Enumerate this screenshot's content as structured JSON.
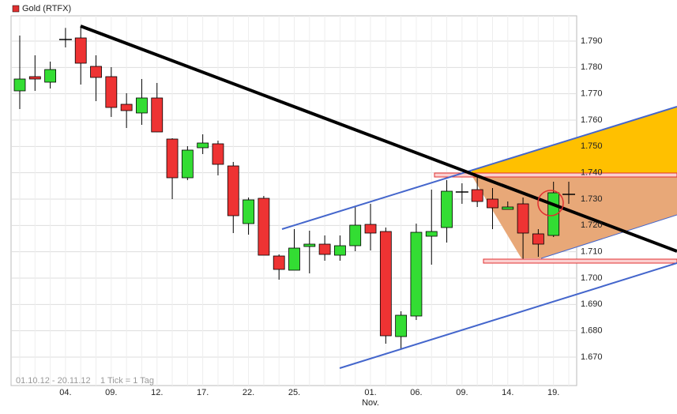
{
  "chart_data": {
    "type": "candlestick",
    "categories": [
      null,
      null,
      null,
      "04.",
      null,
      null,
      "09.",
      null,
      null,
      "12.",
      null,
      null,
      "17.",
      null,
      null,
      "22.",
      null,
      null,
      "25.",
      null,
      null,
      null,
      null,
      "01.",
      null,
      null,
      "06.",
      null,
      null,
      "09.",
      null,
      null,
      "14.",
      null,
      null,
      "19.",
      null
    ],
    "month_label": {
      "index": 23,
      "label": "Nov."
    },
    "series": [
      {
        "name": "Gold (RTFX)",
        "color": "#e03030",
        "up_color": "#33dd33",
        "down_color": "#ee3333",
        "open": [
          1771.1,
          1776.5,
          1774.4,
          1790.6,
          1791.2,
          1780.4,
          1776.5,
          1766.0,
          1762.7,
          1768.4,
          1752.8,
          1738.1,
          1749.5,
          1751.0,
          1742.6,
          1720.7,
          1730.3,
          1708.4,
          1703.0,
          1712.0,
          1712.9,
          1708.7,
          1712.3,
          1720.4,
          1717.7,
          1677.8,
          1685.6,
          1715.9,
          1719.2,
          1732.7,
          1733.6,
          1730.0,
          1726.1,
          1728.2,
          1716.8,
          1716.2,
          1731.8
        ],
        "high": [
          1792.1,
          1784.6,
          1782.2,
          1795.0,
          1795.7,
          1784.6,
          1780.1,
          1770.2,
          1775.6,
          1774.1,
          1753.1,
          1750.1,
          1754.6,
          1752.2,
          1744.1,
          1730.6,
          1731.2,
          1709.0,
          1718.6,
          1718.0,
          1716.2,
          1716.2,
          1727.0,
          1728.2,
          1719.2,
          1687.4,
          1720.7,
          1733.6,
          1737.2,
          1736.0,
          1739.0,
          1734.2,
          1729.1,
          1730.6,
          1718.6,
          1736.6,
          1736.6
        ],
        "low": [
          1764.2,
          1771.1,
          1772.0,
          1787.6,
          1773.5,
          1767.2,
          1761.2,
          1757.0,
          1758.2,
          1755.5,
          1730.0,
          1737.2,
          1747.1,
          1739.0,
          1717.1,
          1716.5,
          1708.7,
          1699.4,
          1703.0,
          1701.8,
          1706.6,
          1706.6,
          1710.2,
          1710.5,
          1675.1,
          1673.0,
          1684.1,
          1705.1,
          1713.5,
          1728.2,
          1727.0,
          1718.6,
          1726.1,
          1706.6,
          1708.1,
          1715.6,
          1728.2
        ],
        "close": [
          1775.6,
          1775.6,
          1779.2,
          1790.6,
          1781.6,
          1776.2,
          1764.8,
          1763.6,
          1768.4,
          1755.5,
          1738.1,
          1748.6,
          1751.3,
          1743.2,
          1723.7,
          1729.7,
          1708.7,
          1703.3,
          1711.4,
          1712.9,
          1709.0,
          1712.3,
          1720.1,
          1717.1,
          1678.1,
          1685.9,
          1717.4,
          1717.7,
          1733.0,
          1732.7,
          1729.1,
          1726.7,
          1727.0,
          1717.1,
          1712.9,
          1732.4,
          1731.8
        ]
      }
    ],
    "ylim": [
      1659.2,
      1799.6
    ],
    "yticks": [
      {
        "value": 1670,
        "label": "1.670"
      },
      {
        "value": 1680,
        "label": "1.680"
      },
      {
        "value": 1690,
        "label": "1.690"
      },
      {
        "value": 1700,
        "label": "1.700"
      },
      {
        "value": 1710,
        "label": "1.710"
      },
      {
        "value": 1720,
        "label": "1.720"
      },
      {
        "value": 1730,
        "label": "1.730"
      },
      {
        "value": 1740,
        "label": "1.740"
      },
      {
        "value": 1750,
        "label": "1.750"
      },
      {
        "value": 1760,
        "label": "1.760"
      },
      {
        "value": 1770,
        "label": "1.770"
      },
      {
        "value": 1780,
        "label": "1.780"
      },
      {
        "value": 1790,
        "label": "1.790"
      }
    ],
    "grid": true,
    "annotations": [
      "01.10.12 - 20.11.12",
      "1 Tick = 1 Tag"
    ]
  }
}
